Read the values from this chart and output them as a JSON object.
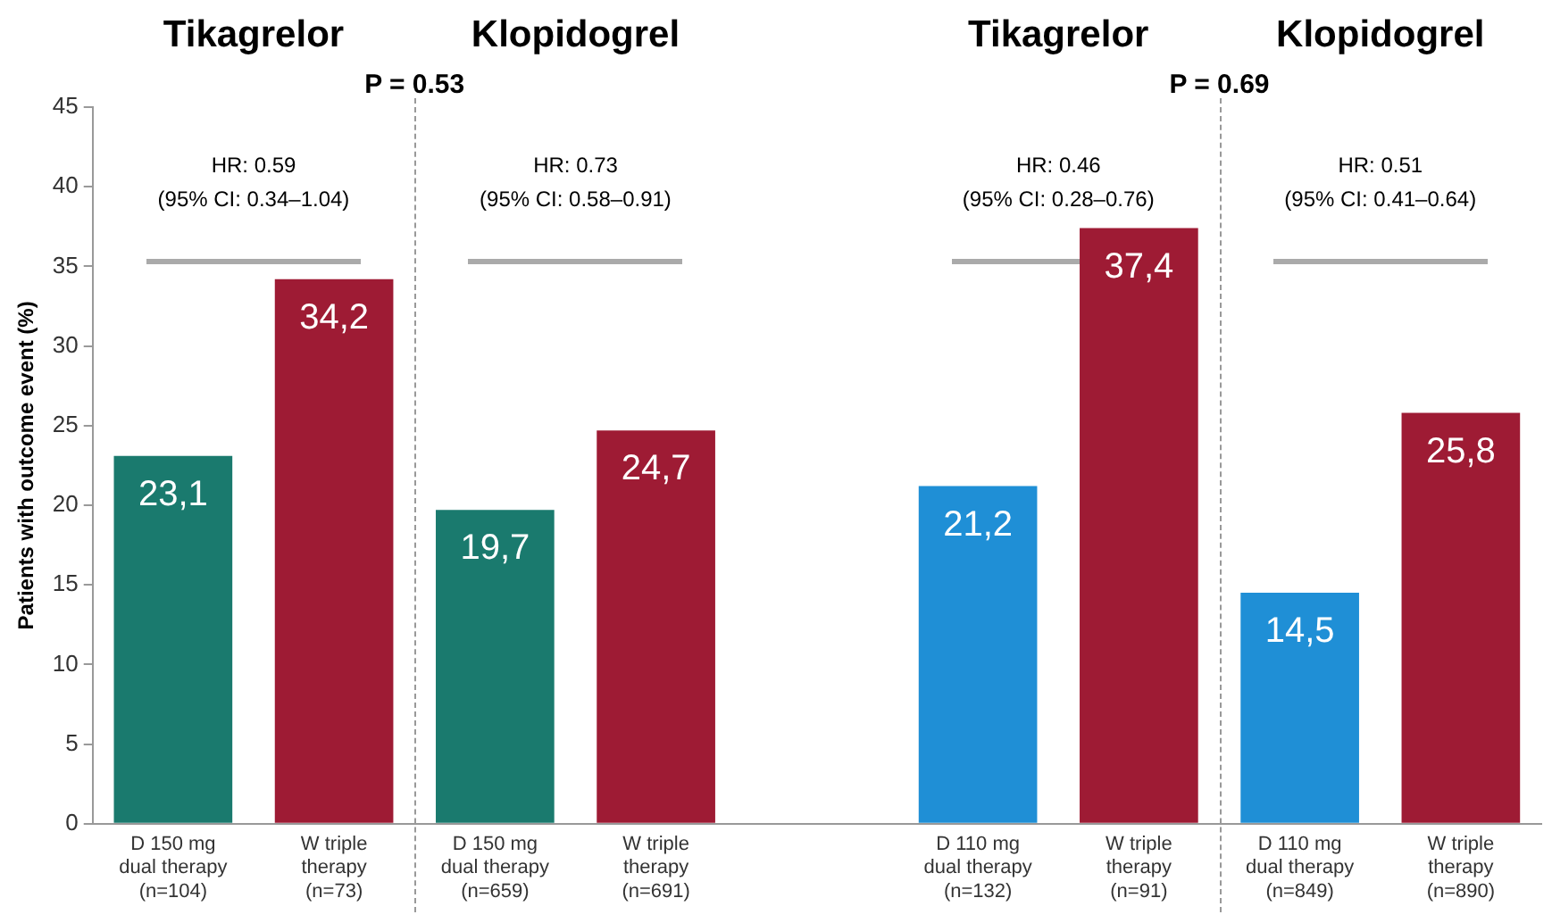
{
  "chart_data": {
    "type": "bar",
    "ylabel": "Patients with outcome event (%)",
    "categories": [
      "D 150 mg\ndual therapy\n(n=104)",
      "W triple\ntherapy\n(n=73)",
      "D 150 mg\ndual therapy\n(n=659)",
      "W triple\ntherapy\n(n=691)",
      null,
      "D 110 mg\ndual therapy\n(n=132)",
      "W triple\ntherapy\n(n=91)",
      "D 110 mg\ndual therapy\n(n=849)",
      "W triple\ntherapy\n(n=890)"
    ],
    "series": [
      {
        "values": [
          23.1,
          34.2,
          19.7,
          24.7,
          null,
          21.2,
          37.4,
          14.5,
          25.8
        ],
        "colors": [
          "#1a7a6e",
          "#9e1b34",
          "#1a7a6e",
          "#9e1b34",
          "#ffffff",
          "#1f8fd6",
          "#9e1b34",
          "#1f8fd6",
          "#9e1b34"
        ],
        "value_labels": [
          "23,1",
          "34,2",
          "19,7",
          "24,7",
          null,
          "21,2",
          "37,4",
          "14,5",
          "25,8"
        ]
      }
    ],
    "ylim": [
      0,
      45
    ],
    "yticks": [
      0,
      5,
      10,
      15,
      20,
      25,
      30,
      35,
      40,
      45
    ],
    "grid": false,
    "legend": false,
    "annotations": [
      "Tikagrelor",
      "Klopidogrel",
      "Tikagrelor",
      "Klopidogrel",
      "P = 0.53",
      "P = 0.69",
      "HR: 0.59\n(95% CI: 0.34–1.04)",
      "HR: 0.73\n(95% CI: 0.58–0.91)",
      "HR: 0.46\n(95% CI: 0.28–0.76)",
      "HR: 0.51\n(95% CI: 0.41–0.64)"
    ]
  }
}
